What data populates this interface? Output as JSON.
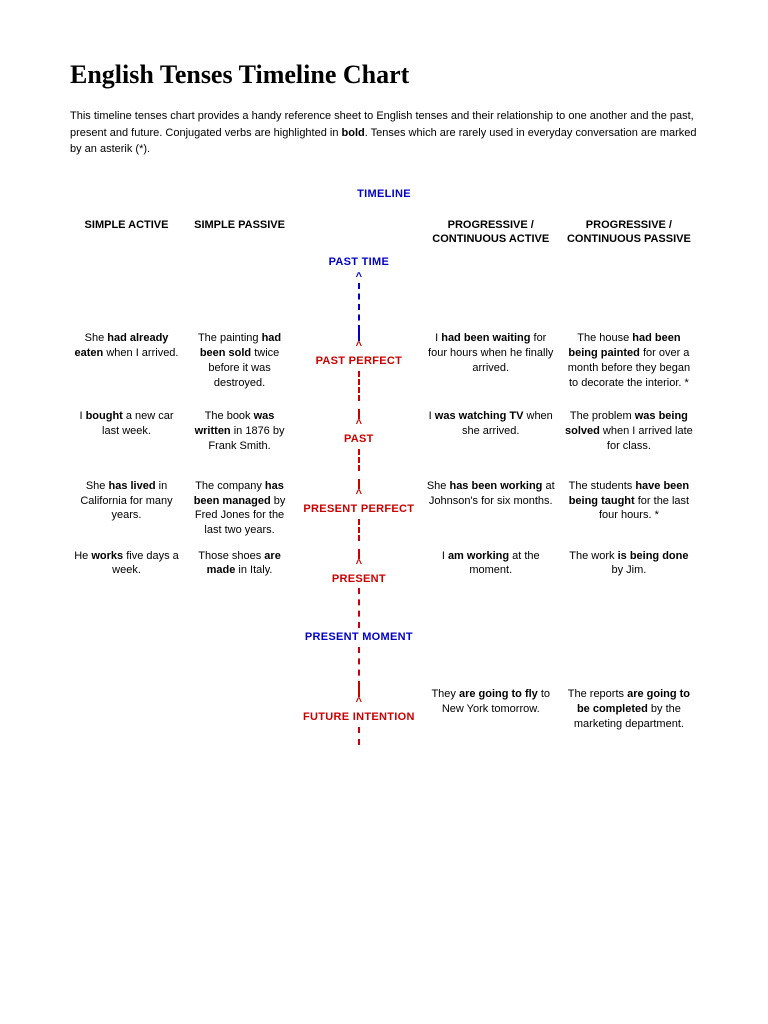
{
  "title": "English Tenses Timeline Chart",
  "intro": "This timeline tenses chart provides a handy reference sheet to English tenses and their relationship to one another and the past, present and future. Conjugated verbs are highlighted in <b>bold</b>. Tenses which are rarely used in everyday conversation are marked by an asterik (*).",
  "timeline_label": "TIMELINE",
  "headers": {
    "c1": "SIMPLE ACTIVE",
    "c2": "SIMPLE PASSIVE",
    "c4": "PROGRESSIVE / CONTINUOUS ACTIVE",
    "c5": "PROGRESSIVE / CONTINUOUS PASSIVE"
  },
  "markers": {
    "past_time": "PAST TIME",
    "past_perfect": "PAST PERFECT",
    "past": "PAST",
    "present_perfect": "PRESENT PERFECT",
    "present": "PRESENT",
    "present_moment": "PRESENT MOMENT",
    "future_intention": "FUTURE INTENTION"
  },
  "rows": {
    "r1": {
      "c1": "She <b>had already eaten</b> when I arrived.",
      "c2": "The painting <b>had been sold</b> twice before it was destroyed.",
      "c4": "I <b>had been waiting</b> for four hours when he finally arrived.",
      "c5": "The house <b>had been being painted</b> for over a month before they began to decorate the interior. *"
    },
    "r2": {
      "c1": "I <b>bought</b> a new car last week.",
      "c2": "The book <b>was written</b> in 1876 by Frank Smith.",
      "c4": "I <b>was watching TV</b> when she arrived.",
      "c5": "The problem <b>was being solved</b> when I arrived late for class."
    },
    "r3": {
      "c1": "She <b>has lived</b> in California for many years.",
      "c2": "The company <b>has been managed</b> by Fred Jones for the last two years.",
      "c4": "She <b>has been working</b> at Johnson's for six months.",
      "c5": "The students <b>have been being taught</b> for the last four hours. *"
    },
    "r4": {
      "c1": "He <b>works</b> five days a week.",
      "c2": "Those shoes <b>are made</b> in Italy.",
      "c4": "I <b>am working</b> at the moment.",
      "c5": "The work <b>is being done</b> by Jim."
    },
    "r5": {
      "c1": "",
      "c2": "",
      "c4": "They <b>are going to fly</b> to New York tomorrow.",
      "c5": "The reports <b>are going to be completed</b> by the marketing department."
    }
  },
  "colors": {
    "blue": "#0000c8",
    "red": "#cc0000",
    "text": "#000000",
    "bg": "#ffffff"
  },
  "fonts": {
    "title_family": "Georgia",
    "title_size_pt": 20,
    "body_family": "Verdana",
    "body_size_pt": 8
  }
}
